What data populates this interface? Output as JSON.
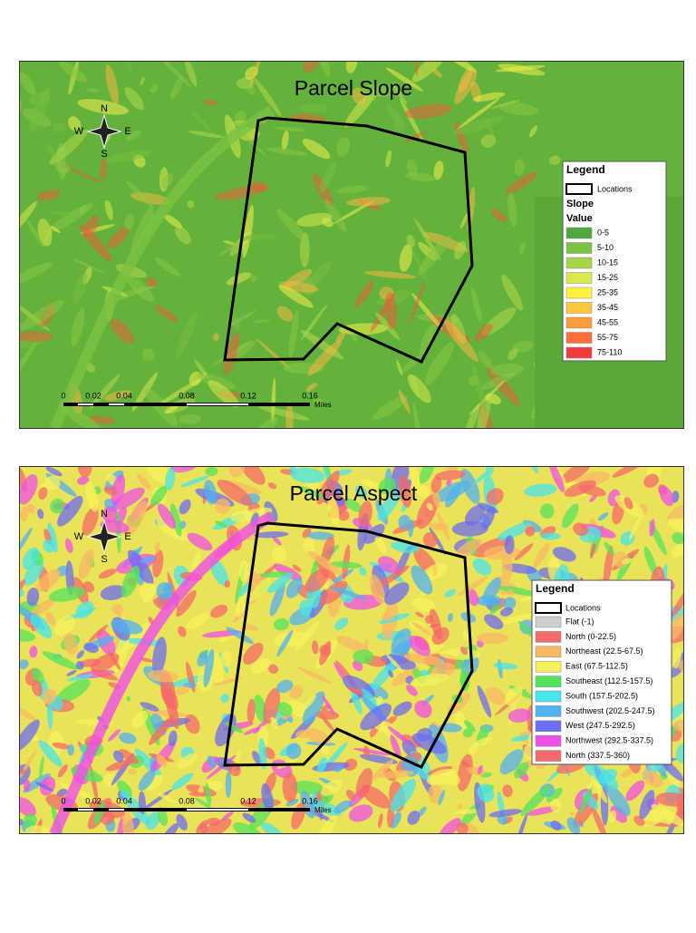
{
  "maps": [
    {
      "title": "Parcel Slope",
      "compass": {
        "n": "N",
        "s": "S",
        "e": "E",
        "w": "W"
      },
      "scale": {
        "ticks": [
          "0",
          "0.02",
          "0.04",
          "0.08",
          "0.12",
          "0.16"
        ],
        "unit": "Miles"
      },
      "legend": {
        "title": "Legend",
        "outline_label": "Locations",
        "group_title_lines": [
          "Slope",
          "Value"
        ],
        "items": [
          {
            "label": "0-5",
            "color": "#4fa83d"
          },
          {
            "label": "5-10",
            "color": "#7cc242"
          },
          {
            "label": "10-15",
            "color": "#a8d545"
          },
          {
            "label": "15-25",
            "color": "#d8ea4a"
          },
          {
            "label": "25-35",
            "color": "#fff23e"
          },
          {
            "label": "35-45",
            "color": "#ffc83c"
          },
          {
            "label": "45-55",
            "color": "#ff9d3a"
          },
          {
            "label": "55-75",
            "color": "#ff6f3a"
          },
          {
            "label": "75-110",
            "color": "#f23c3a"
          }
        ]
      }
    },
    {
      "title": "Parcel Aspect",
      "compass": {
        "n": "N",
        "s": "S",
        "e": "E",
        "w": "W"
      },
      "scale": {
        "ticks": [
          "0",
          "0.02",
          "0.04",
          "0.08",
          "0.12",
          "0.16"
        ],
        "unit": "Miles"
      },
      "legend": {
        "title": "Legend",
        "outline_label": "Locations",
        "items": [
          {
            "label": "Flat (-1)",
            "color": "#cfcfcf"
          },
          {
            "label": "North (0-22.5)",
            "color": "#f56a6a"
          },
          {
            "label": "Northeast (22.5-67.5)",
            "color": "#f9b864"
          },
          {
            "label": "East (67.5-112.5)",
            "color": "#f5f15b"
          },
          {
            "label": "Southeast (112.5-157.5)",
            "color": "#55e35a"
          },
          {
            "label": "South (157.5-202.5)",
            "color": "#47e4e8"
          },
          {
            "label": "Southwest (202.5-247.5)",
            "color": "#50b2f0"
          },
          {
            "label": "West (247.5-292.5)",
            "color": "#6d6cf0"
          },
          {
            "label": "Northwest (292.5-337.5)",
            "color": "#f04fe6"
          },
          {
            "label": "North (337.5-360)",
            "color": "#f56a6a"
          }
        ]
      }
    }
  ]
}
